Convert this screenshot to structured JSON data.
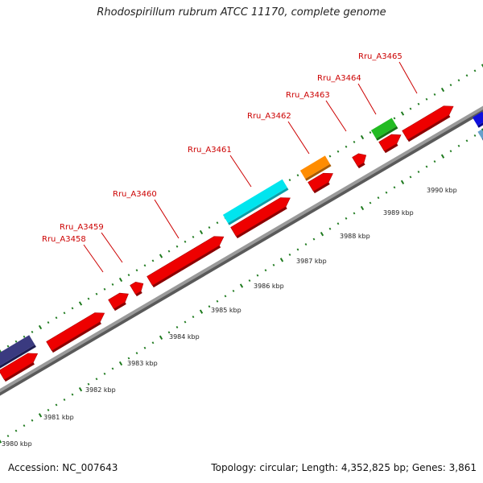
{
  "title": "Rhodospirillum rubrum ATCC 11170, complete genome",
  "footer": {
    "accession": "Accession: NC_007643",
    "stats": "Topology: circular; Length: 4,352,825 bp; Genes: 3,861"
  },
  "gene_labels": [
    "Rru_A3458",
    "Rru_A3459",
    "Rru_A3460",
    "Rru_A3461",
    "Rru_A3462",
    "Rru_A3463",
    "Rru_A3464",
    "Rru_A3465"
  ],
  "kbp_ticks": [
    "3980 kbp",
    "3981 kbp",
    "3982 kbp",
    "3983 kbp",
    "3984 kbp",
    "3985 kbp",
    "3986 kbp",
    "3987 kbp",
    "3988 kbp",
    "3989 kbp",
    "3990 kbp"
  ],
  "colors": {
    "gene": "#ee0000",
    "backbone": "#9a9a9a",
    "tick": "#1e7a1e",
    "label": "#cc0000",
    "cyan": "#00e5ee",
    "orange": "#ff8c00",
    "green": "#22bb22",
    "navy": "#3a3a80",
    "blue": "#1010dd"
  }
}
